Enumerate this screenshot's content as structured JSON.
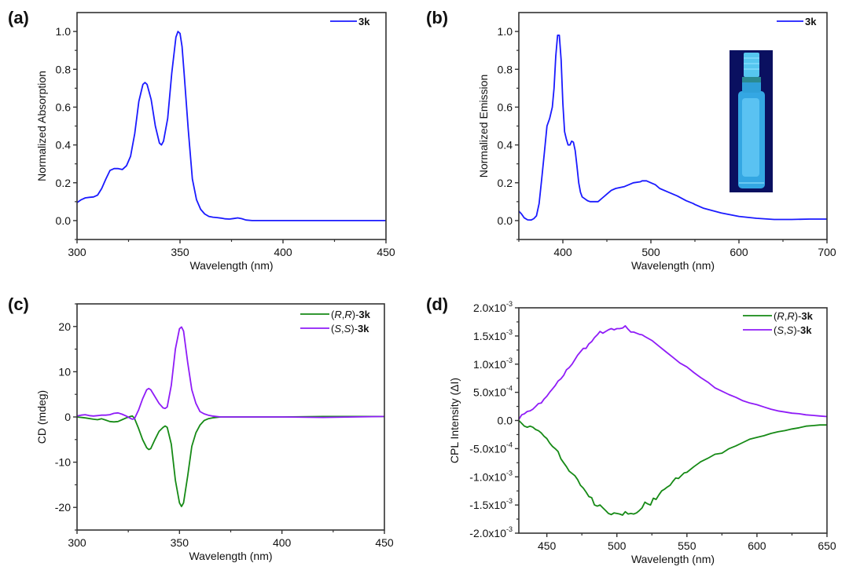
{
  "colors": {
    "blue": "#1a1aff",
    "green": "#168a16",
    "purple": "#8f1cf7",
    "axis": "#333333"
  },
  "chart_data": [
    {
      "panel": "(a)",
      "type": "line",
      "xlabel": "Wavelength (nm)",
      "ylabel": "Normalized Absorption",
      "xlim": [
        300,
        450
      ],
      "ylim": [
        -0.1,
        1.1
      ],
      "xticks": [
        300,
        350,
        400,
        450
      ],
      "xtick_labels": [
        "300",
        "350",
        "400",
        "450"
      ],
      "xminor": [
        325,
        375,
        425
      ],
      "yticks": [
        0.0,
        0.2,
        0.4,
        0.6,
        0.8,
        1.0
      ],
      "ytick_labels": [
        "0.0",
        "0.2",
        "0.4",
        "0.6",
        "0.8",
        "1.0"
      ],
      "yminor": [
        -0.1,
        0.1,
        0.3,
        0.5,
        0.7,
        0.9
      ],
      "legend": "top-right",
      "series": [
        {
          "name": "3k",
          "name_prefix": "",
          "name_bold": "3k",
          "color_key": "blue",
          "x": [
            300,
            302,
            304,
            306,
            308,
            310,
            312,
            314,
            316,
            318,
            320,
            322,
            324,
            326,
            328,
            330,
            332,
            333,
            334,
            336,
            338,
            340,
            341,
            342,
            344,
            346,
            348,
            349,
            350,
            351,
            352,
            354,
            356,
            358,
            360,
            362,
            364,
            366,
            368,
            370,
            372,
            374,
            376,
            378,
            380,
            382,
            385,
            390,
            400,
            420,
            450
          ],
          "y": [
            0.095,
            0.11,
            0.12,
            0.123,
            0.125,
            0.135,
            0.17,
            0.22,
            0.265,
            0.275,
            0.275,
            0.27,
            0.29,
            0.34,
            0.46,
            0.63,
            0.72,
            0.73,
            0.72,
            0.64,
            0.5,
            0.41,
            0.4,
            0.42,
            0.54,
            0.78,
            0.97,
            1.0,
            0.99,
            0.92,
            0.78,
            0.48,
            0.22,
            0.11,
            0.06,
            0.035,
            0.022,
            0.018,
            0.016,
            0.013,
            0.009,
            0.008,
            0.011,
            0.014,
            0.01,
            0.003,
            0.0,
            0.0,
            0.0,
            0.0,
            0.0
          ]
        }
      ]
    },
    {
      "panel": "(b)",
      "type": "line",
      "xlabel": "Wavelength (nm)",
      "ylabel": "Normalized Emission",
      "xlim": [
        350,
        700
      ],
      "ylim": [
        -0.1,
        1.1
      ],
      "xticks": [
        400,
        500,
        600,
        700
      ],
      "xtick_labels": [
        "400",
        "500",
        "600",
        "700"
      ],
      "xminor": [
        350,
        450,
        550,
        650
      ],
      "yticks": [
        0.0,
        0.2,
        0.4,
        0.6,
        0.8,
        1.0
      ],
      "ytick_labels": [
        "0.0",
        "0.2",
        "0.4",
        "0.6",
        "0.8",
        "1.0"
      ],
      "yminor": [
        -0.1,
        0.1,
        0.3,
        0.5,
        0.7,
        0.9
      ],
      "legend": "top-right",
      "inset": "photo of fluorescent vial under UV light",
      "series": [
        {
          "name": "3k",
          "name_prefix": "",
          "name_bold": "3k",
          "color_key": "blue",
          "x": [
            350,
            353,
            356,
            360,
            364,
            367,
            370,
            373,
            376,
            379,
            382,
            385,
            388,
            390,
            392,
            394,
            396,
            398,
            400,
            402,
            404,
            406,
            408,
            410,
            412,
            414,
            416,
            418,
            420,
            422,
            425,
            428,
            431,
            435,
            440,
            445,
            450,
            455,
            460,
            470,
            480,
            488,
            490,
            495,
            500,
            505,
            510,
            520,
            530,
            540,
            548,
            550,
            560,
            580,
            600,
            620,
            640,
            660,
            680,
            700
          ],
          "y": [
            0.05,
            0.035,
            0.015,
            0.004,
            0.003,
            0.01,
            0.025,
            0.09,
            0.22,
            0.36,
            0.5,
            0.54,
            0.6,
            0.7,
            0.87,
            0.98,
            0.98,
            0.85,
            0.62,
            0.47,
            0.43,
            0.4,
            0.4,
            0.42,
            0.415,
            0.37,
            0.29,
            0.2,
            0.15,
            0.125,
            0.115,
            0.105,
            0.1,
            0.1,
            0.1,
            0.12,
            0.14,
            0.16,
            0.17,
            0.18,
            0.2,
            0.205,
            0.21,
            0.21,
            0.2,
            0.19,
            0.17,
            0.15,
            0.13,
            0.105,
            0.09,
            0.085,
            0.065,
            0.04,
            0.022,
            0.012,
            0.006,
            0.006,
            0.008,
            0.008
          ],
          "y_note": "x and y arrays trimmed to equal length in script"
        }
      ]
    },
    {
      "panel": "(c)",
      "type": "line",
      "xlabel": "Wavelength (nm)",
      "ylabel": "CD (mdeg)",
      "xlim": [
        300,
        450
      ],
      "ylim": [
        -25,
        25
      ],
      "xticks": [
        300,
        350,
        400,
        450
      ],
      "xtick_labels": [
        "300",
        "350",
        "400",
        "450"
      ],
      "xminor": [
        325,
        375,
        425
      ],
      "yticks": [
        -20,
        -10,
        0,
        10,
        20
      ],
      "ytick_labels": [
        "-20",
        "-10",
        "0",
        "10",
        "20"
      ],
      "yminor": [
        -25,
        -15,
        -5,
        5,
        15,
        25
      ],
      "legend": "top-right",
      "series": [
        {
          "name": "(R,R)-3k",
          "name_prefix": "(",
          "name_italic1": "R",
          "name_sep": ",",
          "name_italic2": "R",
          "name_close": ")-",
          "name_bold": "3k",
          "color_key": "green",
          "x": [
            300,
            304,
            308,
            310,
            312,
            314,
            316,
            318,
            320,
            322,
            324,
            326,
            327,
            328,
            330,
            332,
            334,
            335,
            336,
            338,
            340,
            342,
            343,
            344,
            346,
            348,
            350,
            351,
            352,
            354,
            356,
            358,
            360,
            362,
            364,
            366,
            370,
            380,
            400,
            420,
            450
          ],
          "y": [
            0.0,
            -0.2,
            -0.5,
            -0.6,
            -0.4,
            -0.7,
            -1.0,
            -1.1,
            -1.0,
            -0.6,
            -0.2,
            0.1,
            0.2,
            -0.3,
            -2.5,
            -5.0,
            -6.8,
            -7.2,
            -7.0,
            -5.0,
            -3.2,
            -2.3,
            -2.0,
            -2.3,
            -6.0,
            -14.0,
            -19.0,
            -19.8,
            -19.0,
            -13.0,
            -6.5,
            -3.5,
            -1.8,
            -0.8,
            -0.4,
            -0.2,
            0.0,
            0.0,
            0.0,
            0.1,
            0.1
          ]
        },
        {
          "name": "(S,S)-3k",
          "name_prefix": "(",
          "name_italic1": "S",
          "name_sep": ",",
          "name_italic2": "S",
          "name_close": ")-",
          "name_bold": "3k",
          "color_key": "purple",
          "x": [
            300,
            302,
            304,
            306,
            308,
            310,
            312,
            314,
            316,
            318,
            320,
            322,
            324,
            326,
            327,
            328,
            330,
            332,
            334,
            335,
            336,
            338,
            340,
            342,
            343,
            344,
            346,
            348,
            350,
            351,
            352,
            354,
            356,
            358,
            360,
            362,
            364,
            366,
            370,
            380,
            400,
            420,
            450
          ],
          "y": [
            0.2,
            0.4,
            0.5,
            0.3,
            0.2,
            0.3,
            0.4,
            0.4,
            0.5,
            0.8,
            0.9,
            0.6,
            0.2,
            -0.3,
            -0.5,
            -0.4,
            1.5,
            4.0,
            6.0,
            6.3,
            6.0,
            4.5,
            3.0,
            2.0,
            1.9,
            2.2,
            7.0,
            15.0,
            19.5,
            19.9,
            19.0,
            12.0,
            6.0,
            3.0,
            1.2,
            0.7,
            0.4,
            0.2,
            0.0,
            0.0,
            0.0,
            -0.1,
            0.1
          ]
        }
      ]
    },
    {
      "panel": "(d)",
      "type": "line",
      "xlabel": "Wavelength (nm)",
      "ylabel": "CPL Intensity (ΔI)",
      "xlim": [
        430,
        650
      ],
      "ylim": [
        -0.002,
        0.002
      ],
      "xticks": [
        450,
        500,
        550,
        600,
        650
      ],
      "xtick_labels": [
        "450",
        "500",
        "550",
        "600",
        "650"
      ],
      "xminor": [
        475,
        525,
        575,
        625
      ],
      "yticks": [
        -0.002,
        -0.0015,
        -0.001,
        -0.0005,
        0.0,
        0.0005,
        0.001,
        0.0015,
        0.002
      ],
      "ytick_mantissa": [
        "-2.0x10",
        "-1.5x10",
        "-1.0x10",
        "-5.0x10",
        "0.0",
        "5.0x10",
        "1.0x10",
        "1.5x10",
        "2.0x10"
      ],
      "ytick_exponent": [
        "-3",
        "-3",
        "-3",
        "-4",
        "",
        "-4",
        "-3",
        "-3",
        "-3"
      ],
      "yminor": [
        -0.00175,
        -0.00125,
        -0.00075,
        -0.00025,
        0.00025,
        0.00075,
        0.00125,
        0.00175
      ],
      "legend": "top-right",
      "series": [
        {
          "name": "(R,R)-3k",
          "name_prefix": "(",
          "name_italic1": "R",
          "name_sep": ",",
          "name_italic2": "R",
          "name_close": ")-",
          "name_bold": "3k",
          "color_key": "green",
          "x": [
            430,
            432,
            434,
            436,
            438,
            440,
            442,
            444,
            446,
            448,
            450,
            452,
            454,
            456,
            458,
            460,
            462,
            464,
            466,
            468,
            470,
            472,
            474,
            476,
            478,
            480,
            482,
            484,
            486,
            488,
            490,
            492,
            494,
            496,
            498,
            500,
            502,
            504,
            506,
            508,
            510,
            512,
            514,
            516,
            518,
            520,
            522,
            524,
            526,
            528,
            530,
            532,
            534,
            536,
            538,
            540,
            542,
            544,
            546,
            548,
            550,
            555,
            560,
            565,
            570,
            575,
            580,
            585,
            590,
            595,
            600,
            605,
            610,
            615,
            620,
            625,
            630,
            635,
            640,
            645,
            650
          ],
          "y": [
            0.0,
            -5e-05,
            -0.0001,
            -0.00012,
            -0.0001,
            -0.00012,
            -0.00016,
            -0.00018,
            -0.00022,
            -0.00028,
            -0.00032,
            -0.0004,
            -0.00046,
            -0.0005,
            -0.00055,
            -0.00068,
            -0.00075,
            -0.00082,
            -0.0009,
            -0.00094,
            -0.00098,
            -0.00105,
            -0.00115,
            -0.0012,
            -0.00127,
            -0.00135,
            -0.00137,
            -0.0015,
            -0.00152,
            -0.0015,
            -0.00155,
            -0.0016,
            -0.00165,
            -0.00167,
            -0.00164,
            -0.00165,
            -0.00166,
            -0.00168,
            -0.00162,
            -0.00166,
            -0.00165,
            -0.00166,
            -0.00164,
            -0.0016,
            -0.00155,
            -0.00145,
            -0.00148,
            -0.0015,
            -0.00138,
            -0.0014,
            -0.00132,
            -0.00125,
            -0.00122,
            -0.00118,
            -0.00115,
            -0.00108,
            -0.00102,
            -0.00103,
            -0.00098,
            -0.00093,
            -0.00092,
            -0.00082,
            -0.00073,
            -0.00067,
            -0.0006,
            -0.00058,
            -0.0005,
            -0.00045,
            -0.00039,
            -0.00033,
            -0.0003,
            -0.00027,
            -0.00023,
            -0.0002,
            -0.00018,
            -0.00015,
            -0.00013,
            -0.0001,
            -9e-05,
            -8e-05,
            -8e-05
          ]
        },
        {
          "name": "(S,S)-3k",
          "name_prefix": "(",
          "name_italic1": "S",
          "name_sep": ",",
          "name_italic2": "S",
          "name_close": ")-",
          "name_bold": "3k",
          "color_key": "purple",
          "x": [
            430,
            432,
            434,
            436,
            438,
            440,
            442,
            444,
            446,
            448,
            450,
            452,
            454,
            456,
            458,
            460,
            462,
            464,
            466,
            468,
            470,
            472,
            474,
            476,
            478,
            480,
            482,
            484,
            486,
            488,
            490,
            492,
            494,
            496,
            498,
            500,
            502,
            504,
            506,
            508,
            510,
            512,
            514,
            516,
            518,
            520,
            525,
            530,
            535,
            540,
            545,
            550,
            555,
            560,
            565,
            570,
            575,
            580,
            585,
            590,
            595,
            600,
            605,
            610,
            615,
            620,
            625,
            630,
            635,
            640,
            645,
            650
          ],
          "y": [
            2e-05,
            0.0001,
            0.00012,
            0.00016,
            0.00017,
            0.0002,
            0.00025,
            0.0003,
            0.00031,
            0.00038,
            0.00043,
            0.0005,
            0.00056,
            0.00062,
            0.0007,
            0.00074,
            0.0008,
            0.0009,
            0.00094,
            0.001,
            0.00108,
            0.00116,
            0.00122,
            0.00128,
            0.00128,
            0.00136,
            0.0014,
            0.00147,
            0.00152,
            0.00158,
            0.00155,
            0.00158,
            0.00161,
            0.00163,
            0.00161,
            0.00163,
            0.00163,
            0.00164,
            0.00168,
            0.00162,
            0.00157,
            0.00157,
            0.00155,
            0.00153,
            0.00152,
            0.00149,
            0.00142,
            0.00132,
            0.00122,
            0.00112,
            0.00102,
            0.00095,
            0.00085,
            0.00076,
            0.00068,
            0.00058,
            0.00052,
            0.00046,
            0.00041,
            0.00035,
            0.00031,
            0.00028,
            0.00024,
            0.0002,
            0.00017,
            0.00015,
            0.00013,
            0.00012,
            0.0001,
            9e-05,
            8e-05,
            7e-05
          ]
        }
      ]
    }
  ]
}
